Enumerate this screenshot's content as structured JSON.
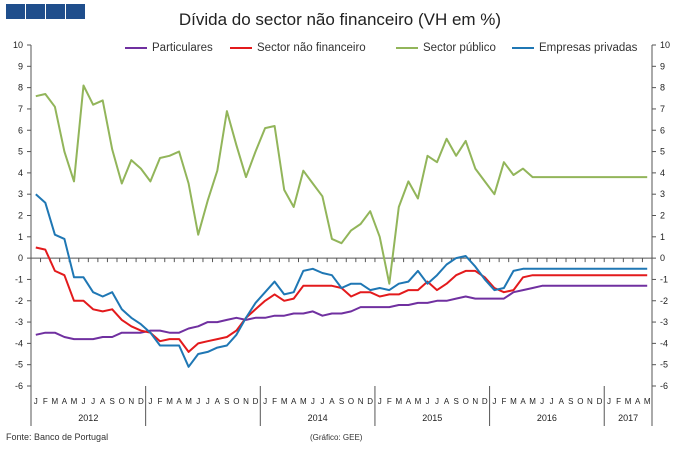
{
  "header": {
    "logo_colors": [
      "#1f4e8c",
      "#1f4e8c",
      "#1f4e8c",
      "#1f4e8c"
    ]
  },
  "footer": {
    "source": "Fonte: Banco de Portugal",
    "credit": "(Gráfico: GEE)"
  },
  "chart_data": {
    "type": "line",
    "title": "Dívida do sector não financeiro (VH em %)",
    "xlabel": "",
    "ylabel": "",
    "ylim": [
      -6,
      10
    ],
    "yticks": [
      10,
      9,
      8,
      7,
      6,
      5,
      4,
      3,
      2,
      1,
      0,
      -1,
      -2,
      -3,
      -4,
      -5,
      -6
    ],
    "legend_position": "top",
    "grid": false,
    "months": [
      "J",
      "F",
      "M",
      "A",
      "M",
      "J",
      "J",
      "A",
      "S",
      "O",
      "N",
      "D",
      "J",
      "F",
      "M",
      "A",
      "M",
      "J",
      "J",
      "A",
      "S",
      "O",
      "N",
      "D",
      "J",
      "F",
      "M",
      "A",
      "M",
      "J",
      "J",
      "A",
      "S",
      "O",
      "N",
      "D",
      "J",
      "F",
      "M",
      "A",
      "M",
      "J",
      "J",
      "A",
      "S",
      "O",
      "N",
      "D",
      "J",
      "F",
      "M",
      "A",
      "M",
      "J",
      "J",
      "A",
      "S",
      "O",
      "N",
      "D",
      "J",
      "F",
      "M",
      "A",
      "M"
    ],
    "years": [
      {
        "label": "2012",
        "start": 0,
        "end": 11
      },
      {
        "label": "2014",
        "start": 24,
        "end": 35
      },
      {
        "label": "2015",
        "start": 36,
        "end": 47
      },
      {
        "label": "2016",
        "start": 48,
        "end": 59
      },
      {
        "label": "2017",
        "start": 60,
        "end": 64
      }
    ],
    "series": [
      {
        "name": "Particulares",
        "color": "#7030a0",
        "values": [
          -3.6,
          -3.5,
          -3.5,
          -3.7,
          -3.8,
          -3.8,
          -3.8,
          -3.7,
          -3.7,
          -3.5,
          -3.5,
          -3.5,
          -3.4,
          -3.4,
          -3.5,
          -3.5,
          -3.3,
          -3.2,
          -3.0,
          -3.0,
          -2.9,
          -2.8,
          -2.9,
          -2.8,
          -2.8,
          -2.7,
          -2.7,
          -2.6,
          -2.6,
          -2.5,
          -2.7,
          -2.6,
          -2.6,
          -2.5,
          -2.3,
          -2.3,
          -2.3,
          -2.3,
          -2.2,
          -2.2,
          -2.1,
          -2.1,
          -2.0,
          -2.0,
          -1.9,
          -1.8,
          -1.9,
          -1.9,
          -1.9,
          -1.9,
          -1.6,
          -1.5,
          -1.4,
          -1.3,
          -1.3,
          -1.3,
          -1.3,
          -1.3,
          -1.3,
          -1.3,
          -1.3,
          -1.3,
          -1.3,
          -1.3,
          -1.3
        ]
      },
      {
        "name": "Sector não financeiro",
        "color": "#e31a1c",
        "values": [
          0.5,
          0.4,
          -0.6,
          -0.8,
          -2.0,
          -2.0,
          -2.4,
          -2.5,
          -2.4,
          -2.9,
          -3.2,
          -3.4,
          -3.5,
          -3.9,
          -3.8,
          -3.8,
          -4.4,
          -4.0,
          -3.9,
          -3.8,
          -3.7,
          -3.4,
          -2.8,
          -2.4,
          -2.0,
          -1.7,
          -2.0,
          -1.9,
          -1.3,
          -1.3,
          -1.3,
          -1.3,
          -1.4,
          -1.8,
          -1.6,
          -1.6,
          -1.8,
          -1.7,
          -1.7,
          -1.5,
          -1.5,
          -1.1,
          -1.5,
          -1.2,
          -0.8,
          -0.6,
          -0.6,
          -0.9,
          -1.4,
          -1.6,
          -1.5,
          -0.9,
          -0.8,
          -0.8,
          -0.8,
          -0.8,
          -0.8,
          -0.8,
          -0.8,
          -0.8,
          -0.8,
          -0.8,
          -0.8,
          -0.8,
          -0.8
        ]
      },
      {
        "name": "Sector público",
        "color": "#92b55a",
        "values": [
          7.6,
          7.7,
          7.1,
          5.0,
          3.6,
          8.1,
          7.2,
          7.4,
          5.1,
          3.5,
          4.6,
          4.2,
          3.6,
          4.7,
          4.8,
          5.0,
          3.5,
          1.1,
          2.7,
          4.1,
          6.9,
          5.3,
          3.8,
          5.0,
          6.1,
          6.2,
          3.2,
          2.4,
          4.1,
          3.5,
          2.9,
          0.9,
          0.7,
          1.3,
          1.6,
          2.2,
          1.0,
          -1.2,
          2.4,
          3.6,
          2.8,
          4.8,
          4.5,
          5.6,
          4.8,
          5.5,
          4.2,
          3.6,
          3.0,
          4.5,
          3.9,
          4.2,
          3.8,
          3.8,
          3.8,
          3.8,
          3.8,
          3.8,
          3.8,
          3.8,
          3.8,
          3.8,
          3.8,
          3.8,
          3.8
        ]
      },
      {
        "name": "Empresas privadas",
        "color": "#1f77b4",
        "values": [
          3.0,
          2.6,
          1.1,
          0.9,
          -0.9,
          -0.9,
          -1.6,
          -1.8,
          -1.6,
          -2.4,
          -2.8,
          -3.1,
          -3.5,
          -4.1,
          -4.1,
          -4.1,
          -5.1,
          -4.5,
          -4.4,
          -4.2,
          -4.1,
          -3.6,
          -2.8,
          -2.1,
          -1.6,
          -1.1,
          -1.7,
          -1.6,
          -0.6,
          -0.5,
          -0.7,
          -0.8,
          -1.4,
          -1.2,
          -1.2,
          -1.5,
          -1.4,
          -1.5,
          -1.2,
          -1.1,
          -0.6,
          -1.2,
          -0.8,
          -0.3,
          0.0,
          0.1,
          -0.4,
          -1.0,
          -1.5,
          -1.4,
          -0.6,
          -0.5,
          -0.5,
          -0.5,
          -0.5,
          -0.5,
          -0.5,
          -0.5,
          -0.5,
          -0.5,
          -0.5,
          -0.5,
          -0.5,
          -0.5,
          -0.5
        ]
      }
    ]
  }
}
